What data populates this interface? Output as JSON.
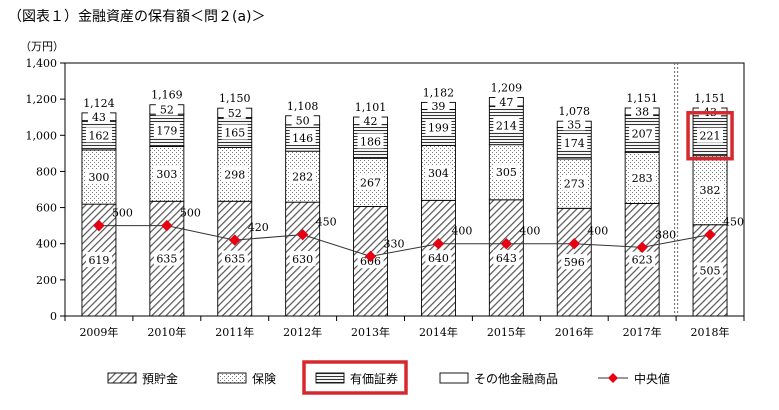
{
  "chart_data": {
    "type": "bar",
    "stacked": true,
    "title": "（図表１）金融資産の保有額＜問２(a)＞",
    "ylabel": "（万円）",
    "xlabel": "",
    "ylim": [
      0,
      1400
    ],
    "yticks": [
      0,
      200,
      400,
      600,
      800,
      1000,
      1200,
      1400
    ],
    "ytick_labels": [
      "0",
      "200",
      "400",
      "600",
      "800",
      "1,000",
      "1,200",
      "1,400"
    ],
    "categories": [
      "2009年",
      "2010年",
      "2011年",
      "2012年",
      "2013年",
      "2014年",
      "2015年",
      "2016年",
      "2017年",
      "2018年"
    ],
    "series": [
      {
        "name": "預貯金",
        "values": [
          619,
          635,
          635,
          630,
          606,
          640,
          643,
          596,
          623,
          505
        ]
      },
      {
        "name": "保険",
        "values": [
          300,
          303,
          298,
          282,
          267,
          304,
          305,
          273,
          283,
          382
        ]
      },
      {
        "name": "有価証券",
        "values": [
          162,
          179,
          165,
          146,
          186,
          199,
          214,
          174,
          207,
          221
        ]
      },
      {
        "name": "その他金融商品",
        "values": [
          43,
          52,
          52,
          50,
          42,
          39,
          47,
          35,
          38,
          43
        ]
      }
    ],
    "totals": [
      1124,
      1169,
      1150,
      1108,
      1101,
      1182,
      1209,
      1078,
      1151,
      1151
    ],
    "total_labels": [
      "1,124",
      "1,169",
      "1,150",
      "1,108",
      "1,101",
      "1,182",
      "1,209",
      "1,078",
      "1,151",
      "1,151"
    ],
    "median": {
      "name": "中央値",
      "values": [
        500,
        500,
        420,
        450,
        330,
        400,
        400,
        400,
        380,
        450
      ]
    },
    "legend": [
      "預貯金",
      "保険",
      "有価証券",
      "その他金融商品",
      "中央値"
    ],
    "legend_position": "bottom",
    "highlight": {
      "category": "2018年",
      "series": "有価証券",
      "color": "#d7282f"
    },
    "colors": {
      "median": "#e60012",
      "highlight": "#d7282f",
      "line": "#333333"
    }
  }
}
